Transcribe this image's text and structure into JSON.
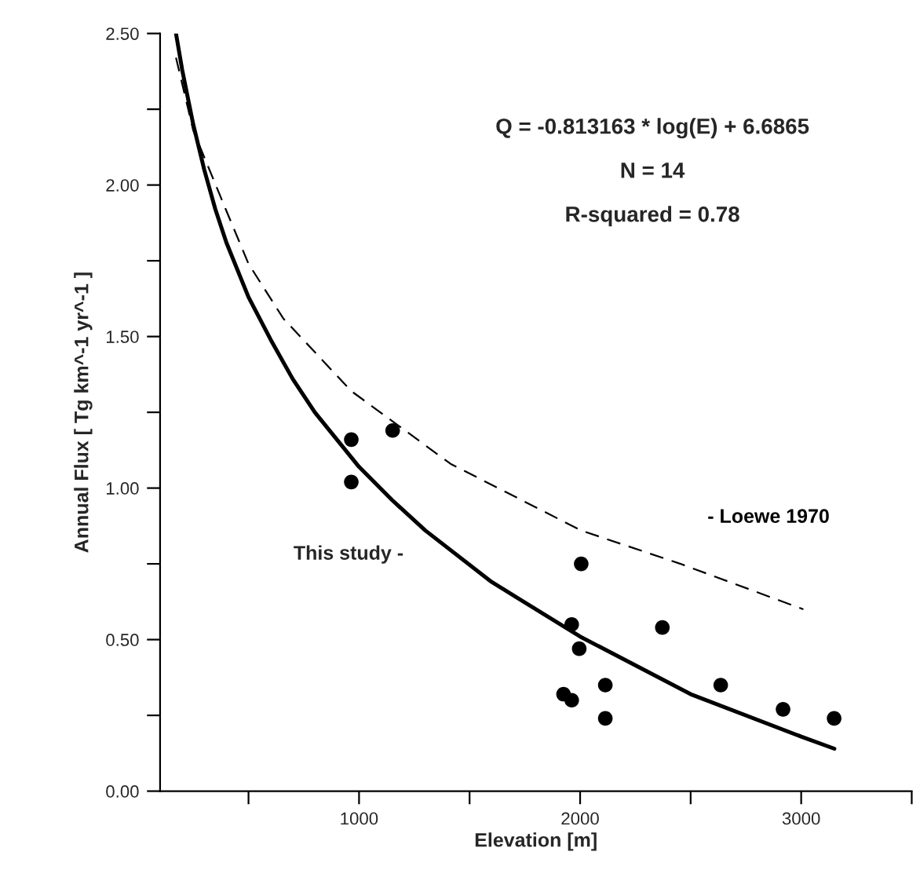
{
  "chart_data": {
    "type": "scatter",
    "xlabel": "Elevation [m]",
    "ylabel": "Annual Flux [ Tg km^-1 yr^-1 ]",
    "xlim": [
      100,
      3500
    ],
    "xticks": [
      {
        "value": 500,
        "label": null
      },
      1000,
      {
        "value": 1500,
        "label": null
      },
      2000,
      {
        "value": 2500,
        "label": null
      },
      3000,
      {
        "value": 3500,
        "label": null
      }
    ],
    "ylim": [
      0,
      2.5
    ],
    "yticks": [
      {
        "value": 0,
        "label": "0.00"
      },
      {
        "value": 0.25,
        "label": null
      },
      {
        "value": 0.5,
        "label": "0.50"
      },
      {
        "value": 0.75,
        "label": null
      },
      {
        "value": 1,
        "label": "1.00"
      },
      {
        "value": 1.25,
        "label": null
      },
      {
        "value": 1.5,
        "label": "1.50"
      },
      {
        "value": 1.75,
        "label": null
      },
      {
        "value": 2,
        "label": "2.00"
      },
      {
        "value": 2.25,
        "label": null
      },
      {
        "value": 2.5,
        "label": "2.50"
      }
    ],
    "grid": false,
    "legend": false,
    "annotations": [
      "Q = -0.813163 * log(E) + 6.6865",
      "N = 14",
      "R-squared = 0.78"
    ],
    "series": [
      {
        "color": "#000000",
        "marker": "circle",
        "x": [
          965,
          965,
          1152,
          2005,
          1962,
          1996,
          2114,
          1925,
          1962,
          2114,
          2372,
          2636,
          2918,
          3149
        ],
        "values": [
          1.16,
          1.02,
          1.19,
          0.75,
          0.55,
          0.47,
          0.35,
          0.32,
          0.3,
          0.24,
          0.54,
          0.35,
          0.27,
          0.24
        ]
      },
      {
        "type": "line",
        "name": "This study -",
        "color": "#000000",
        "line_style": "solid",
        "marker": "none",
        "x": [
          172,
          200,
          250,
          300,
          350,
          400,
          500,
          600,
          700,
          800,
          1000,
          1150,
          1300,
          1600,
          2000,
          2500,
          3000,
          3150
        ],
        "values": [
          2.5,
          2.38,
          2.2,
          2.05,
          1.92,
          1.81,
          1.63,
          1.49,
          1.36,
          1.25,
          1.07,
          0.96,
          0.86,
          0.69,
          0.51,
          0.32,
          0.18,
          0.14
        ]
      },
      {
        "type": "line",
        "name": "- Loewe 1970",
        "color": "#000000",
        "line_style": "dashed",
        "marker": "none",
        "x": [
          172,
          250,
          397,
          500,
          657,
          965,
          1414,
          2005,
          2454,
          3010
        ],
        "values": [
          2.42,
          2.18,
          1.92,
          1.74,
          1.56,
          1.32,
          1.08,
          0.86,
          0.75,
          0.6
        ]
      }
    ]
  }
}
